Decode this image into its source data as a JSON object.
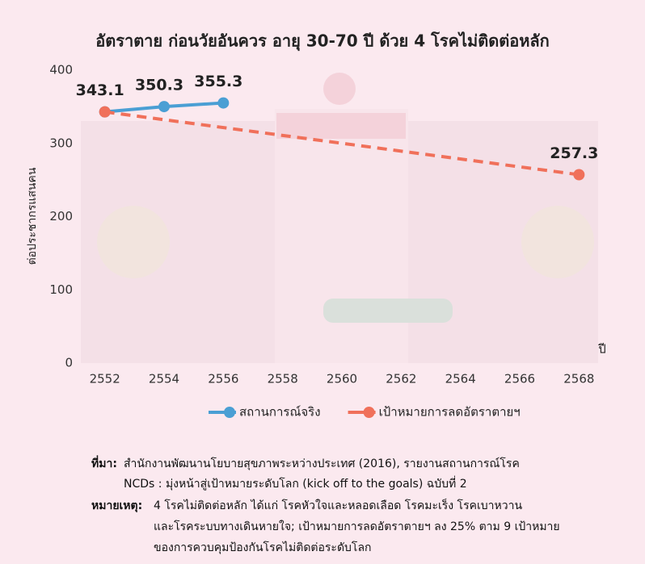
{
  "chart_data": {
    "type": "line",
    "title": "อัตราตาย ก่อนวัยอันควร อายุ 30-70 ปี ด้วย 4 โรคไม่ติดต่อหลัก",
    "y_label": "ต่อประชากรแสนคน",
    "x_label": "ปี",
    "xlim": [
      2551,
      2569
    ],
    "xticks": [
      2552,
      2554,
      2556,
      2558,
      2560,
      2562,
      2564,
      2566,
      2568
    ],
    "ylim": [
      0,
      400
    ],
    "yticks": [
      0,
      100,
      200,
      300,
      400
    ],
    "series": [
      {
        "name": "สถานการณ์จริง",
        "color": "#4a9fd4",
        "line_style": "solid",
        "x": [
          2552,
          2554,
          2556
        ],
        "values": [
          343.1,
          350.3,
          355.3
        ]
      },
      {
        "name": "เป้าหมายการลดอัตราตายฯ",
        "color": "#f0705a",
        "line_style": "dashed",
        "x": [
          2552,
          2568
        ],
        "values": [
          343.1,
          257.3
        ]
      }
    ],
    "data_labels": [
      {
        "series": 0,
        "points": [
          0,
          1,
          2
        ]
      },
      {
        "series": 1,
        "points": [
          1
        ]
      }
    ],
    "source_label": "ที่มา:",
    "source": [
      "สำนักงานพัฒนานโยบายสุขภาพระหว่างประเทศ (2016), รายงานสถานการณ์โรค",
      "NCDs : มุ่งหน้าสู่เป้าหมายระดับโลก (kick off to the goals) ฉบับที่ 2"
    ],
    "note_label": "หมายเหตุ:",
    "note": [
      "4 โรคไม่ติดต่อหลัก ได้แก่ โรคหัวใจและหลอดเลือด โรคมะเร็ง โรคเบาหวาน",
      "และโรคระบบทางเดินหายใจ; เป้าหมายการลดอัตราตายฯ ลง 25% ตาม 9 เป้าหมาย",
      "ของการควบคุมป้องกันโรคไม่ติดต่อระดับโลก"
    ]
  }
}
